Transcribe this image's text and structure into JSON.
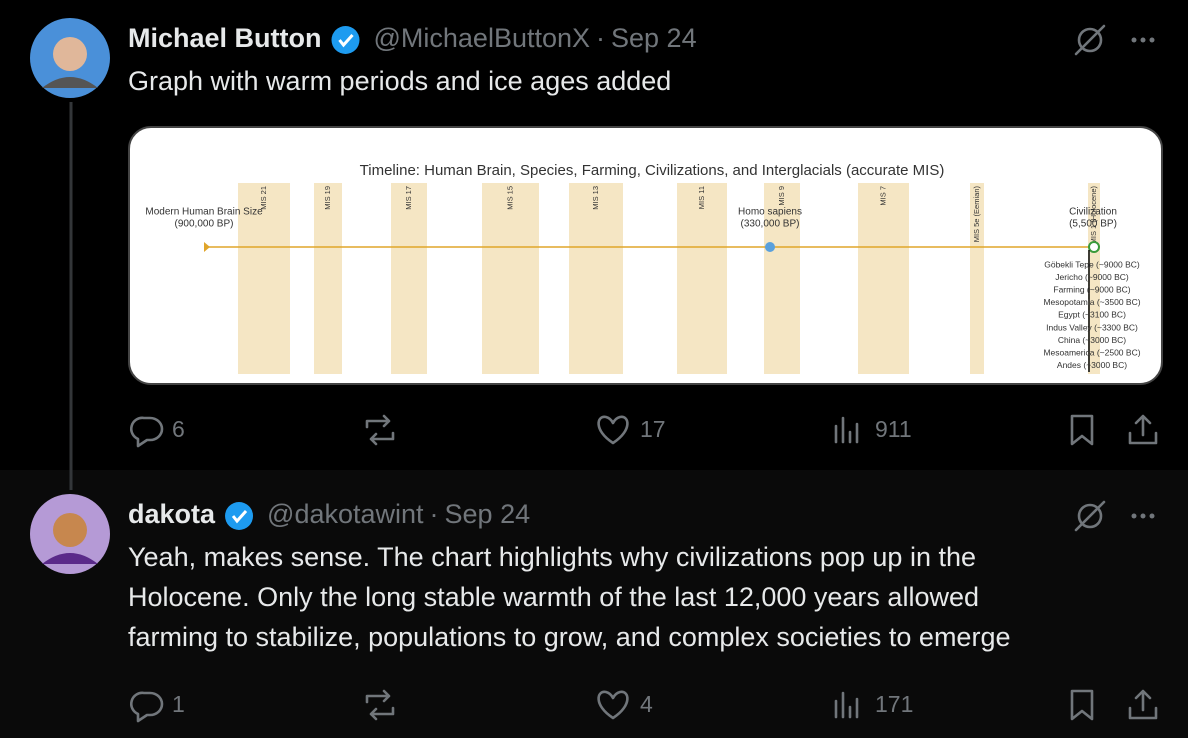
{
  "tweets": [
    {
      "author": {
        "name": "Michael Button",
        "handle": "@MichaelButtonX"
      },
      "separator": "·",
      "date": "Sep 24",
      "text": [
        "Graph with warm periods and ice ages added"
      ],
      "image": {
        "title": "Timeline: Human Brain, Species, Farming, Civilizations, and Interglacials (accurate MIS)",
        "bands": [
          "MIS 21",
          "MIS 19",
          "MIS 17",
          "MIS 15",
          "MIS 13",
          "MIS 11",
          "MIS 9",
          "MIS 7",
          "MIS 5e (Eemian)",
          "MIS 1 (Holocene)"
        ],
        "annotations": [
          [
            "Modern Human Brain Size",
            "(900,000 BP)"
          ],
          [
            "Homo sapiens",
            "(330,000 BP)"
          ],
          [
            "Civilization",
            "(5,500 BP)"
          ]
        ],
        "events": [
          "Göbekli Tepe (~9000 BC)",
          "Jericho (~9000 BC)",
          "Farming (~9000 BC)",
          "Mesopotamia (~3500 BC)",
          "Egypt (~3100 BC)",
          "Indus Valley (~3300 BC)",
          "China (~3000 BC)",
          "Mesoamerica (~2500 BC)",
          "Andes (~3000 BC)"
        ]
      },
      "stats": {
        "replies": 6,
        "likes": 17,
        "views": 911
      }
    },
    {
      "author": {
        "name": "dakota",
        "handle": "@dakotawint"
      },
      "separator": "·",
      "date": "Sep 24",
      "text": [
        "Yeah, makes sense. The chart highlights why civilizations pop up in the",
        "Holocene. Only the long stable warmth of the last 12,000 years allowed",
        "farming to stabilize, populations to grow, and complex societies to emerge"
      ],
      "stats": {
        "replies": 1,
        "likes": 4,
        "views": 171
      }
    }
  ]
}
